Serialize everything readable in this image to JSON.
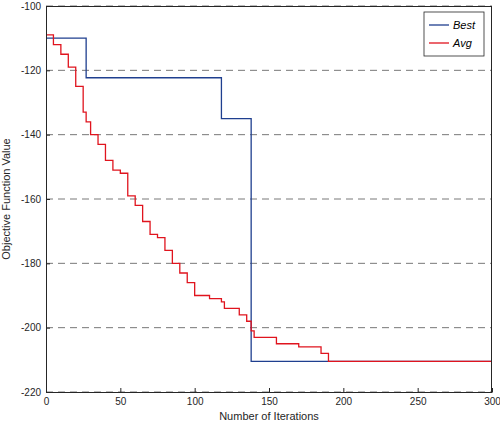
{
  "chart_data": {
    "type": "line",
    "xlabel": "Number of Iterations",
    "ylabel": "Objective Function Value",
    "x": [
      0,
      5,
      10,
      15,
      20,
      25,
      27,
      30,
      35,
      40,
      45,
      50,
      55,
      60,
      65,
      70,
      75,
      80,
      85,
      90,
      95,
      100,
      105,
      110,
      115,
      118,
      120,
      125,
      130,
      135,
      138,
      140,
      145,
      150,
      155,
      160,
      165,
      170,
      175,
      180,
      185,
      190,
      200,
      250,
      300
    ],
    "series": [
      {
        "name": "Best",
        "color": "#1f3f8f",
        "line_style": "step",
        "values": [
          -110,
          -110,
          -110,
          -110,
          -110,
          -110,
          -122.3,
          -122.3,
          -122.3,
          -122.3,
          -122.3,
          -122.3,
          -122.3,
          -122.3,
          -122.3,
          -122.3,
          -122.3,
          -122.3,
          -122.3,
          -122.3,
          -122.3,
          -122.3,
          -122.3,
          -122.3,
          -122.3,
          -135,
          -135,
          -135,
          -135,
          -135,
          -210.5,
          -210.5,
          -210.5,
          -210.5,
          -210.5,
          -210.5,
          -210.5,
          -210.5,
          -210.5,
          -210.5,
          -210.5,
          -210.5,
          -210.5,
          -210.5,
          -210.5
        ]
      },
      {
        "name": "Avg",
        "color": "#e0141e",
        "line_style": "step",
        "values": [
          -109,
          -112,
          -115,
          -119,
          -125,
          -133,
          -136,
          -140,
          -143,
          -148,
          -151,
          -152,
          -159,
          -162,
          -167,
          -171,
          -172,
          -176,
          -180,
          -183,
          -186,
          -190,
          -190,
          -191,
          -191,
          -192,
          -194,
          -194,
          -196,
          -198,
          -201,
          -203,
          -203,
          -203,
          -205,
          -205,
          -205,
          -206,
          -206,
          -206,
          -208,
          -210.5,
          -210.5,
          -210.5,
          -210.5
        ]
      }
    ],
    "xlim": [
      0,
      300
    ],
    "xticks": [
      0,
      50,
      100,
      150,
      200,
      250,
      300
    ],
    "ylim": [
      -220,
      -100
    ],
    "yticks": [
      -220,
      -200,
      -180,
      -160,
      -140,
      -120,
      -100
    ],
    "grid": true,
    "legend": "top-right"
  }
}
